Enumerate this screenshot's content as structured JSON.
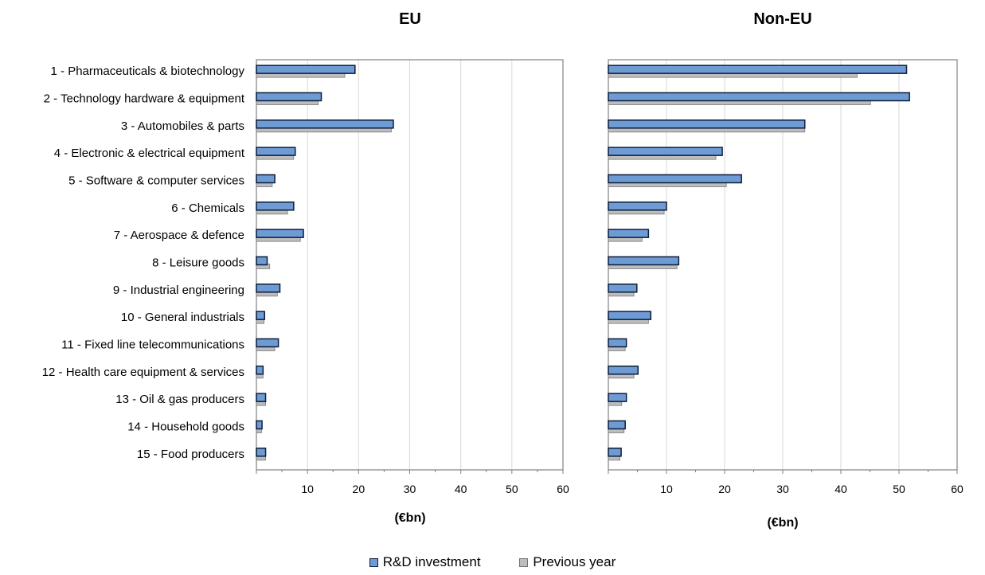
{
  "chart_data": [
    {
      "type": "bar",
      "orientation": "horizontal",
      "title": "EU",
      "xlabel": "(€bn)",
      "xlim": [
        0,
        60
      ],
      "xticks": [
        10,
        20,
        30,
        40,
        50,
        60
      ],
      "grid": true,
      "categories": [
        "1 - Pharmaceuticals & biotechnology",
        "2 - Technology hardware & equipment",
        "3 - Automobiles & parts",
        "4 - Electronic & electrical equipment",
        "5 - Software & computer services",
        "6 - Chemicals",
        "7 - Aerospace & defence",
        "8 - Leisure goods",
        "9 - Industrial engineering",
        "10 - General industrials",
        "11 - Fixed line telecommunications",
        "12 - Health care equipment & services",
        "13 - Oil & gas producers",
        "14 - Household goods",
        "15 - Food producers"
      ],
      "series": [
        {
          "name": "R&D investment",
          "values": [
            19.3,
            12.7,
            26.8,
            7.6,
            3.6,
            7.3,
            9.2,
            2.1,
            4.6,
            1.6,
            4.3,
            1.3,
            1.8,
            1.1,
            1.8
          ]
        },
        {
          "name": "Previous year",
          "values": [
            17.3,
            12.1,
            26.4,
            7.3,
            3.1,
            6.1,
            8.6,
            2.6,
            4.1,
            1.5,
            3.6,
            1.3,
            1.8,
            1.0,
            1.8
          ]
        }
      ]
    },
    {
      "type": "bar",
      "orientation": "horizontal",
      "title": "Non-EU",
      "xlabel": "(€bn)",
      "xlim": [
        0,
        60
      ],
      "xticks": [
        10,
        20,
        30,
        40,
        50,
        60
      ],
      "grid": true,
      "categories": [
        "1 - Pharmaceuticals & biotechnology",
        "2 - Technology hardware & equipment",
        "3 - Automobiles & parts",
        "4 - Electronic & electrical equipment",
        "5 - Software & computer services",
        "6 - Chemicals",
        "7 - Aerospace & defence",
        "8 - Leisure goods",
        "9 - Industrial engineering",
        "10 - General industrials",
        "11 - Fixed line telecommunications",
        "12 - Health care equipment & services",
        "13 - Oil & gas producers",
        "14 - Household goods",
        "15 - Food producers"
      ],
      "series": [
        {
          "name": "R&D investment",
          "values": [
            51.3,
            51.8,
            33.8,
            19.6,
            22.9,
            10.0,
            6.9,
            12.1,
            4.9,
            7.3,
            3.1,
            5.1,
            3.1,
            2.9,
            2.2
          ]
        },
        {
          "name": "Previous year",
          "values": [
            42.8,
            45.1,
            33.8,
            18.5,
            20.3,
            9.6,
            5.8,
            11.8,
            4.4,
            6.9,
            2.9,
            4.4,
            2.3,
            2.7,
            2.0
          ]
        }
      ]
    }
  ],
  "legend": {
    "position": "bottom-center",
    "items": [
      "R&D investment",
      "Previous year"
    ]
  },
  "colors": {
    "current_fill": "#6f9bd4",
    "current_stroke": "#0c1d3a",
    "previous_fill": "#bdbdbd",
    "previous_stroke": "#7a7a7a",
    "grid": "#d9d9d9",
    "axis": "#808080"
  }
}
